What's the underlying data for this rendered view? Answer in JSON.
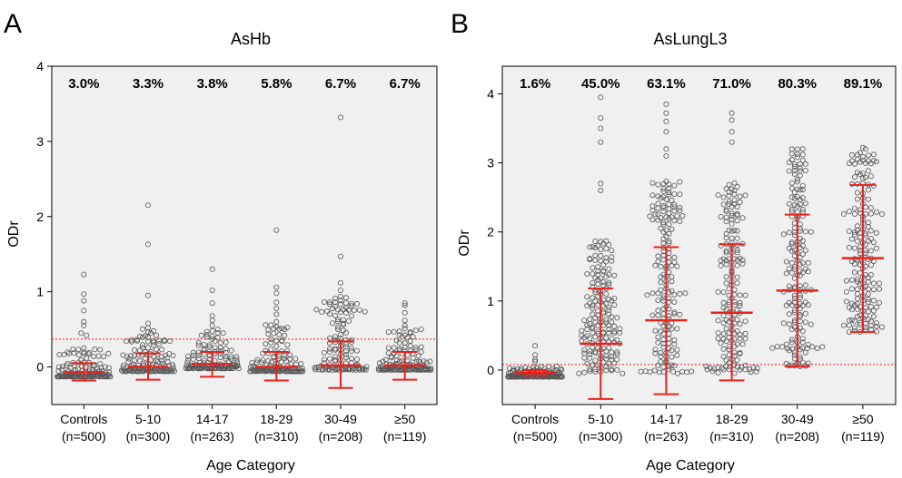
{
  "chart_data": [
    {
      "type": "scatter",
      "panel_label": "A",
      "title": "AsHb",
      "ylabel": "ODr",
      "xlabel": "Age Category",
      "ylim": [
        -0.5,
        4
      ],
      "yticks": [
        "0",
        "1",
        "2",
        "3",
        "4"
      ],
      "cutoff": 0.37,
      "grid": false,
      "categories": [
        {
          "name": "Controls",
          "n": "(n=500)",
          "percent": "3.0%",
          "mean": -0.07,
          "sd_low": -0.18,
          "sd_high": 0.05,
          "sample_max": 1.23,
          "extra_points": [
            1.23,
            0.97,
            0.88,
            0.75,
            0.6,
            0.55,
            0.45,
            0.42
          ]
        },
        {
          "name": "5-10",
          "n": "(n=300)",
          "percent": "3.3%",
          "mean": 0.0,
          "sd_low": -0.17,
          "sd_high": 0.18,
          "sample_max": 2.15,
          "extra_points": [
            2.15,
            1.63,
            0.95,
            0.58,
            0.52,
            0.48,
            0.45,
            0.42
          ]
        },
        {
          "name": "14-17",
          "n": "(n=263)",
          "percent": "3.8%",
          "mean": 0.04,
          "sd_low": -0.13,
          "sd_high": 0.2,
          "sample_max": 1.3,
          "extra_points": [
            1.3,
            1.02,
            0.85,
            0.68,
            0.62,
            0.55,
            0.5,
            0.45
          ]
        },
        {
          "name": "18-29",
          "n": "(n=310)",
          "percent": "5.8%",
          "mean": 0.0,
          "sd_low": -0.18,
          "sd_high": 0.2,
          "sample_max": 1.82,
          "extra_points": [
            1.82,
            1.06,
            0.98,
            0.86,
            0.78,
            0.7,
            0.6,
            0.5
          ]
        },
        {
          "name": "30-49",
          "n": "(n=208)",
          "percent": "6.7%",
          "mean": 0.02,
          "sd_low": -0.28,
          "sd_high": 0.34,
          "sample_max": 3.32,
          "extra_points": [
            3.32,
            1.47,
            1.12,
            1.02,
            0.92,
            0.84,
            0.72,
            0.68
          ]
        },
        {
          "name": "≥50",
          "n": "(n=119)",
          "percent": "6.7%",
          "mean": 0.02,
          "sd_low": -0.17,
          "sd_high": 0.2,
          "sample_max": 0.85,
          "extra_points": [
            0.85,
            0.82,
            0.72,
            0.62,
            0.55,
            0.5,
            0.45,
            0.4
          ]
        }
      ]
    },
    {
      "type": "scatter",
      "panel_label": "B",
      "title": "AsLungL3",
      "ylabel": "ODr",
      "xlabel": "Age Category",
      "ylim": [
        -0.5,
        4.4
      ],
      "yticks": [
        "0",
        "1",
        "2",
        "3",
        "4"
      ],
      "cutoff": 0.08,
      "grid": false,
      "categories": [
        {
          "name": "Controls",
          "n": "(n=500)",
          "percent": "1.6%",
          "mean": -0.04,
          "sd_low": -0.08,
          "sd_high": 0.0,
          "sample_max": 0.35,
          "extra_points": [
            0.35,
            0.22,
            0.15,
            0.12
          ]
        },
        {
          "name": "5-10",
          "n": "(n=300)",
          "percent": "45.0%",
          "mean": 0.38,
          "sd_low": -0.42,
          "sd_high": 1.18,
          "sample_max": 3.95,
          "extra_points": [
            3.95,
            3.65,
            3.5,
            3.3,
            2.7,
            2.6
          ]
        },
        {
          "name": "14-17",
          "n": "(n=263)",
          "percent": "63.1%",
          "mean": 0.72,
          "sd_low": -0.35,
          "sd_high": 1.78,
          "sample_max": 3.85,
          "extra_points": [
            3.85,
            3.72,
            3.6,
            3.45,
            3.2,
            3.1
          ]
        },
        {
          "name": "18-29",
          "n": "(n=310)",
          "percent": "71.0%",
          "mean": 0.83,
          "sd_low": -0.15,
          "sd_high": 1.82,
          "sample_max": 3.72,
          "extra_points": [
            3.72,
            3.62,
            3.45,
            3.3
          ]
        },
        {
          "name": "30-49",
          "n": "(n=208)",
          "percent": "80.3%",
          "mean": 1.15,
          "sd_low": 0.05,
          "sd_high": 2.25,
          "sample_max": 3.2,
          "extra_points": [
            3.2,
            3.12
          ]
        },
        {
          "name": "≥50",
          "n": "(n=119)",
          "percent": "89.1%",
          "mean": 1.62,
          "sd_low": 0.55,
          "sd_high": 2.68,
          "sample_max": 3.22,
          "extra_points": [
            3.22,
            3.12
          ]
        }
      ]
    }
  ],
  "colors": {
    "plot_background": "#f0f0f0",
    "points": "#555555",
    "error_bars": "#e8231e",
    "cutoff_line": "#e8231e"
  }
}
